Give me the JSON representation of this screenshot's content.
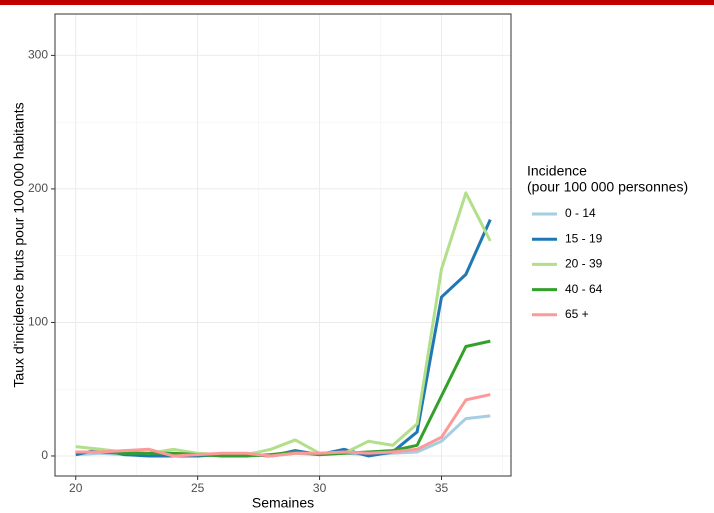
{
  "chart_data": {
    "type": "line",
    "x_label": "Semaines",
    "y_label": "Taux d'incidence bruts pour 100 000 habitants",
    "legend_title": [
      "Incidence",
      "(pour 100 000 personnes)"
    ],
    "x": [
      20,
      21,
      22,
      23,
      24,
      25,
      26,
      27,
      28,
      29,
      30,
      31,
      32,
      33,
      34,
      35,
      36,
      37
    ],
    "series": [
      {
        "name": "0 - 14",
        "color": "#a6cee3",
        "values": [
          1,
          2,
          1,
          1,
          1,
          1,
          1,
          1,
          0,
          2,
          1,
          2,
          1,
          2,
          3,
          11,
          28,
          30
        ]
      },
      {
        "name": "15 - 19",
        "color": "#1f78b4",
        "values": [
          1,
          5,
          1,
          0,
          0,
          0,
          1,
          1,
          0,
          4,
          1,
          5,
          0,
          3,
          18,
          119,
          136,
          177
        ]
      },
      {
        "name": "20 - 39",
        "color": "#b2df8a",
        "values": [
          7,
          5,
          3,
          2,
          5,
          2,
          1,
          1,
          5,
          12,
          2,
          2,
          11,
          8,
          24,
          140,
          197,
          161
        ]
      },
      {
        "name": "40 - 64",
        "color": "#33a02c",
        "values": [
          3,
          3,
          2,
          2,
          2,
          1,
          0,
          0,
          1,
          3,
          1,
          2,
          3,
          4,
          8,
          45,
          82,
          86
        ]
      },
      {
        "name": "65 +",
        "color": "#fb9a99",
        "values": [
          3,
          3,
          4,
          5,
          0,
          1,
          2,
          2,
          0,
          2,
          2,
          3,
          2,
          3,
          5,
          14,
          42,
          46
        ]
      }
    ],
    "xlim": [
      19.15,
      37.85
    ],
    "xticks": [
      20,
      25,
      30,
      35
    ],
    "xminor": [
      22.5,
      27.5,
      32.5,
      37.5
    ],
    "ylim": [
      -15,
      331
    ],
    "yticks": [
      0,
      100,
      200,
      300
    ],
    "yminor": [
      50,
      150,
      250
    ],
    "grid": true,
    "legend": "right"
  }
}
